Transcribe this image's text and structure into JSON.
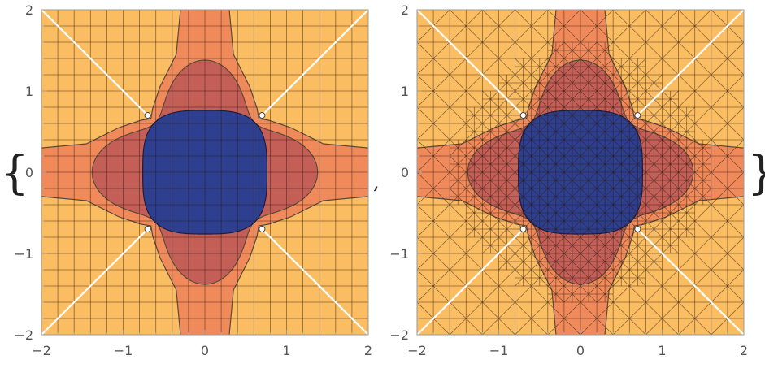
{
  "expression": {
    "open_brace": "{",
    "close_brace": "}",
    "separator": ","
  },
  "colors": {
    "outer_orange": "#f08a5a",
    "light_yellow": "#fbbd62",
    "dark_red": "#c45f58",
    "blue": "#2e3f8f",
    "contour_line": "#5a4a3a",
    "mesh_line": "#2a1a10",
    "branch_cut": "#ffffff",
    "frame": "#999999"
  },
  "chart_data": [
    {
      "type": "contour",
      "variant": "regular-grid",
      "xlim": [
        -2,
        2
      ],
      "ylim": [
        -2,
        2
      ],
      "x_ticks": [
        "−2",
        "−1",
        "0",
        "1",
        "2"
      ],
      "y_ticks": [
        "2",
        "1",
        "0",
        "−1",
        "−2"
      ],
      "grid_divisions": 20,
      "regions": [
        {
          "name": "outer",
          "color": "outer_orange"
        },
        {
          "name": "corner-lobes",
          "color": "light_yellow"
        },
        {
          "name": "clover",
          "color": "dark_red"
        },
        {
          "name": "core",
          "color": "blue"
        }
      ],
      "branch_points": [
        [
          -0.7,
          0.7
        ],
        [
          0.7,
          0.7
        ],
        [
          -0.7,
          -0.7
        ],
        [
          0.7,
          -0.7
        ]
      ],
      "branch_cuts": [
        [
          [
            -2,
            2
          ],
          [
            -0.7,
            0.7
          ]
        ],
        [
          [
            2,
            2
          ],
          [
            0.7,
            0.7
          ]
        ],
        [
          [
            -2,
            -2
          ],
          [
            -0.7,
            -0.7
          ]
        ],
        [
          [
            2,
            -2
          ],
          [
            0.7,
            -0.7
          ]
        ]
      ]
    },
    {
      "type": "contour",
      "variant": "adaptive-triangular-mesh",
      "xlim": [
        -2,
        2
      ],
      "ylim": [
        -2,
        2
      ],
      "x_ticks": [
        "−2",
        "−1",
        "0",
        "1",
        "2"
      ],
      "y_ticks": [
        "2",
        "1",
        "0",
        "−1",
        "−2"
      ],
      "grid_divisions": 20,
      "regions": [
        {
          "name": "outer",
          "color": "outer_orange"
        },
        {
          "name": "corner-lobes",
          "color": "light_yellow"
        },
        {
          "name": "clover",
          "color": "dark_red"
        },
        {
          "name": "core",
          "color": "blue"
        }
      ],
      "branch_points": [
        [
          -0.7,
          0.7
        ],
        [
          0.7,
          0.7
        ],
        [
          -0.7,
          -0.7
        ],
        [
          0.7,
          -0.7
        ]
      ],
      "branch_cuts": [
        [
          [
            -2,
            2
          ],
          [
            -0.7,
            0.7
          ]
        ],
        [
          [
            2,
            2
          ],
          [
            0.7,
            0.7
          ]
        ],
        [
          [
            -2,
            -2
          ],
          [
            -0.7,
            -0.7
          ]
        ],
        [
          [
            2,
            -2
          ],
          [
            0.7,
            -0.7
          ]
        ]
      ]
    }
  ]
}
